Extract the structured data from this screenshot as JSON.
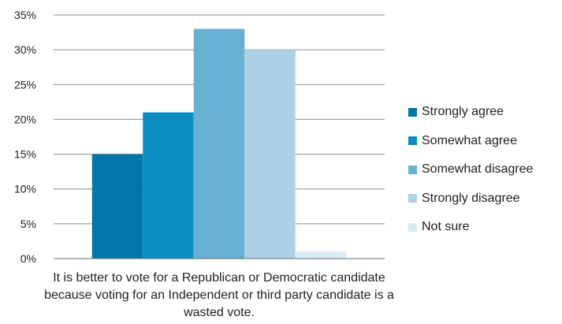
{
  "chart_data": {
    "type": "bar",
    "categories": [
      "It is better to vote for a Republican or Democratic candidate because voting for an Independent or third party candidate is a wasted vote."
    ],
    "series": [
      {
        "name": "Strongly agree",
        "color": "#0077a8",
        "values": [
          15
        ]
      },
      {
        "name": "Somewhat agree",
        "color": "#0a8dc1",
        "values": [
          21
        ]
      },
      {
        "name": "Somewhat disagree",
        "color": "#68b0d3",
        "values": [
          33
        ]
      },
      {
        "name": "Strongly disagree",
        "color": "#acd1e6",
        "values": [
          30
        ]
      },
      {
        "name": "Not sure",
        "color": "#d9ecf6",
        "values": [
          1
        ]
      }
    ],
    "y_ticks": [
      "0%",
      "5%",
      "10%",
      "15%",
      "20%",
      "25%",
      "30%",
      "35%"
    ],
    "ylim": [
      0,
      35
    ],
    "grid": true,
    "legend_position": "right"
  }
}
